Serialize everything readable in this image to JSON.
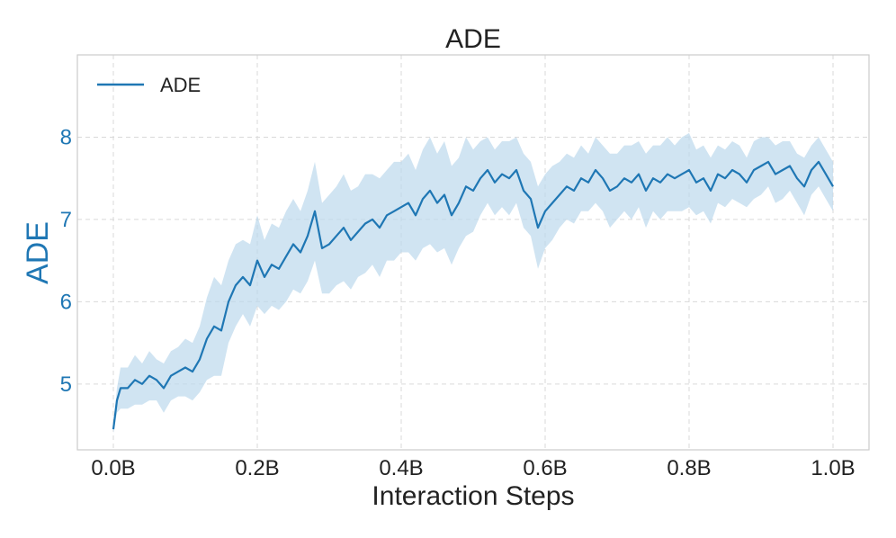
{
  "chart_data": {
    "type": "line",
    "title": "ADE",
    "xlabel": "Interaction Steps",
    "ylabel": "ADE",
    "xlim": [
      -0.05,
      1.05
    ],
    "ylim": [
      4.2,
      9.0
    ],
    "x_ticks": [
      0.0,
      0.2,
      0.4,
      0.6,
      0.8,
      1.0
    ],
    "x_tick_labels": [
      "0.0B",
      "0.2B",
      "0.4B",
      "0.6B",
      "0.8B",
      "1.0B"
    ],
    "y_ticks": [
      5,
      6,
      7,
      8
    ],
    "y_tick_labels": [
      "5",
      "6",
      "7",
      "8"
    ],
    "grid": true,
    "legend_position": "top-left",
    "colors": {
      "line": "#1f77b4",
      "band": "#bcd8ec",
      "axis_label": "#1f77b4"
    },
    "series": [
      {
        "name": "ADE",
        "x": [
          0.0,
          0.005,
          0.01,
          0.02,
          0.03,
          0.04,
          0.05,
          0.06,
          0.07,
          0.08,
          0.09,
          0.1,
          0.11,
          0.12,
          0.13,
          0.14,
          0.15,
          0.16,
          0.17,
          0.18,
          0.19,
          0.2,
          0.21,
          0.22,
          0.23,
          0.24,
          0.25,
          0.26,
          0.27,
          0.28,
          0.29,
          0.3,
          0.31,
          0.32,
          0.33,
          0.34,
          0.35,
          0.36,
          0.37,
          0.38,
          0.39,
          0.4,
          0.41,
          0.42,
          0.43,
          0.44,
          0.45,
          0.46,
          0.47,
          0.48,
          0.49,
          0.5,
          0.51,
          0.52,
          0.53,
          0.54,
          0.55,
          0.56,
          0.57,
          0.58,
          0.59,
          0.6,
          0.61,
          0.62,
          0.63,
          0.64,
          0.65,
          0.66,
          0.67,
          0.68,
          0.69,
          0.7,
          0.71,
          0.72,
          0.73,
          0.74,
          0.75,
          0.76,
          0.77,
          0.78,
          0.79,
          0.8,
          0.81,
          0.82,
          0.83,
          0.84,
          0.85,
          0.86,
          0.87,
          0.88,
          0.89,
          0.9,
          0.91,
          0.92,
          0.93,
          0.94,
          0.95,
          0.96,
          0.97,
          0.98,
          0.99,
          1.0
        ],
        "values": [
          4.45,
          4.8,
          4.95,
          4.95,
          5.05,
          5.0,
          5.1,
          5.05,
          4.95,
          5.1,
          5.15,
          5.2,
          5.15,
          5.3,
          5.55,
          5.7,
          5.65,
          6.0,
          6.2,
          6.3,
          6.2,
          6.5,
          6.3,
          6.45,
          6.4,
          6.55,
          6.7,
          6.6,
          6.8,
          7.1,
          6.65,
          6.7,
          6.8,
          6.9,
          6.75,
          6.85,
          6.95,
          7.0,
          6.9,
          7.05,
          7.1,
          7.15,
          7.2,
          7.05,
          7.25,
          7.35,
          7.2,
          7.3,
          7.05,
          7.2,
          7.4,
          7.35,
          7.5,
          7.6,
          7.45,
          7.55,
          7.5,
          7.6,
          7.35,
          7.25,
          6.9,
          7.1,
          7.2,
          7.3,
          7.4,
          7.35,
          7.5,
          7.45,
          7.6,
          7.5,
          7.35,
          7.4,
          7.5,
          7.45,
          7.55,
          7.35,
          7.5,
          7.45,
          7.55,
          7.5,
          7.55,
          7.6,
          7.45,
          7.5,
          7.35,
          7.55,
          7.5,
          7.6,
          7.55,
          7.45,
          7.6,
          7.65,
          7.7,
          7.55,
          7.6,
          7.65,
          7.5,
          7.4,
          7.6,
          7.7,
          7.55,
          7.4
        ],
        "band_halfwidth": [
          0.05,
          0.15,
          0.25,
          0.25,
          0.3,
          0.25,
          0.3,
          0.25,
          0.3,
          0.3,
          0.3,
          0.35,
          0.35,
          0.4,
          0.5,
          0.6,
          0.55,
          0.5,
          0.5,
          0.45,
          0.5,
          0.55,
          0.45,
          0.5,
          0.5,
          0.55,
          0.55,
          0.5,
          0.55,
          0.6,
          0.55,
          0.6,
          0.6,
          0.65,
          0.6,
          0.55,
          0.6,
          0.55,
          0.6,
          0.55,
          0.6,
          0.55,
          0.6,
          0.55,
          0.6,
          0.65,
          0.6,
          0.65,
          0.6,
          0.55,
          0.6,
          0.5,
          0.45,
          0.4,
          0.4,
          0.4,
          0.45,
          0.4,
          0.45,
          0.45,
          0.5,
          0.45,
          0.45,
          0.4,
          0.4,
          0.4,
          0.4,
          0.35,
          0.4,
          0.4,
          0.45,
          0.4,
          0.4,
          0.45,
          0.4,
          0.45,
          0.4,
          0.45,
          0.45,
          0.4,
          0.45,
          0.45,
          0.4,
          0.4,
          0.4,
          0.35,
          0.35,
          0.35,
          0.35,
          0.3,
          0.35,
          0.35,
          0.3,
          0.35,
          0.35,
          0.3,
          0.3,
          0.35,
          0.3,
          0.3,
          0.3,
          0.3
        ]
      }
    ]
  }
}
